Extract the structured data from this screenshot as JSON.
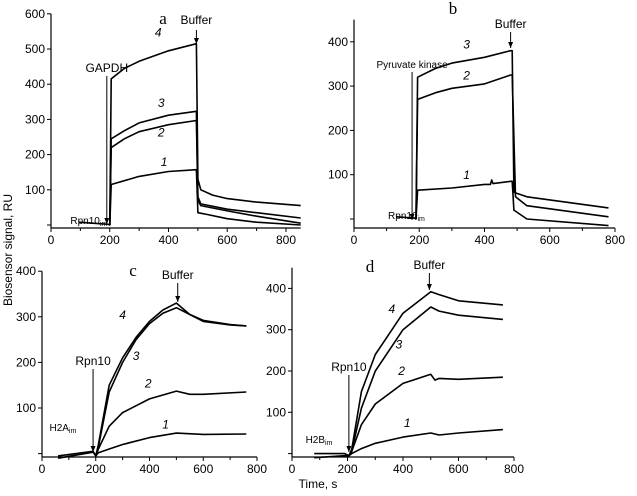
{
  "chart_data": {
    "ylabel": "Biosensor signal, RU",
    "xlabel": "Time, s",
    "panels": [
      {
        "id": "a",
        "title": "a",
        "type": "line",
        "xlim": [
          0,
          850
        ],
        "ylim": [
          0,
          600
        ],
        "xticks": [
          0,
          200,
          400,
          600,
          800
        ],
        "yticks": [
          100,
          200,
          300,
          400,
          500,
          600
        ],
        "annotations": [
          {
            "text": "GAPDH",
            "x": 190,
            "arrow": true
          },
          {
            "text": "Buffer",
            "x": 495,
            "arrow": true
          },
          {
            "text": "Rpn10",
            "sub": "im",
            "x": 100
          }
        ],
        "series": [
          {
            "name": "4",
            "label_at": [
              365,
              535
            ],
            "points": [
              [
                95,
                8
              ],
              [
                195,
                2
              ],
              [
                200,
                0
              ],
              [
                205,
                415
              ],
              [
                250,
                445
              ],
              [
                300,
                465
              ],
              [
                400,
                495
              ],
              [
                495,
                515
              ],
              [
                500,
                130
              ],
              [
                510,
                100
              ],
              [
                550,
                85
              ],
              [
                600,
                75
              ],
              [
                700,
                65
              ],
              [
                850,
                55
              ]
            ]
          },
          {
            "name": "3",
            "label_at": [
              375,
              335
            ],
            "points": [
              [
                200,
                0
              ],
              [
                205,
                245
              ],
              [
                250,
                268
              ],
              [
                300,
                290
              ],
              [
                400,
                312
              ],
              [
                495,
                323
              ],
              [
                500,
                80
              ],
              [
                510,
                60
              ],
              [
                600,
                45
              ],
              [
                700,
                35
              ],
              [
                850,
                20
              ]
            ]
          },
          {
            "name": "2",
            "label_at": [
              375,
              252
            ],
            "points": [
              [
                200,
                0
              ],
              [
                205,
                220
              ],
              [
                250,
                245
              ],
              [
                300,
                265
              ],
              [
                400,
                285
              ],
              [
                495,
                297
              ],
              [
                500,
                70
              ],
              [
                510,
                55
              ],
              [
                600,
                40
              ],
              [
                700,
                25
              ],
              [
                850,
                5
              ]
            ]
          },
          {
            "name": "1",
            "label_at": [
              385,
              168
            ],
            "points": [
              [
                200,
                0
              ],
              [
                205,
                115
              ],
              [
                300,
                138
              ],
              [
                400,
                152
              ],
              [
                495,
                157
              ],
              [
                500,
                35
              ],
              [
                530,
                30
              ],
              [
                600,
                18
              ],
              [
                700,
                8
              ],
              [
                850,
                0
              ]
            ]
          }
        ]
      },
      {
        "id": "b",
        "title": "b",
        "type": "line",
        "xlim": [
          0,
          800
        ],
        "ylim": [
          -20,
          450
        ],
        "xticks": [
          0,
          200,
          400,
          600,
          800
        ],
        "yticks": [
          100,
          200,
          300,
          400
        ],
        "annotations": [
          {
            "text": "Pyruvate kinase",
            "x": 178,
            "arrow": true
          },
          {
            "text": "Buffer",
            "x": 480,
            "arrow": true
          },
          {
            "text": "Rpn10",
            "sub": "im",
            "x": 135
          }
        ],
        "series": [
          {
            "name": "3",
            "label_at": [
              345,
              385
            ],
            "points": [
              [
                130,
                5
              ],
              [
                185,
                2
              ],
              [
                190,
                0
              ],
              [
                195,
                320
              ],
              [
                250,
                340
              ],
              [
                300,
                352
              ],
              [
                400,
                365
              ],
              [
                480,
                380
              ],
              [
                485,
                380
              ],
              [
                490,
                60
              ],
              [
                530,
                50
              ],
              [
                780,
                25
              ]
            ]
          },
          {
            "name": "2",
            "label_at": [
              345,
              315
            ],
            "points": [
              [
                190,
                0
              ],
              [
                195,
                270
              ],
              [
                250,
                285
              ],
              [
                300,
                295
              ],
              [
                400,
                305
              ],
              [
                480,
                325
              ],
              [
                485,
                325
              ],
              [
                495,
                50
              ],
              [
                530,
                30
              ],
              [
                780,
                5
              ]
            ]
          },
          {
            "name": "1",
            "label_at": [
              345,
              90
            ],
            "points": [
              [
                190,
                0
              ],
              [
                195,
                65
              ],
              [
                300,
                70
              ],
              [
                400,
                78
              ],
              [
                418,
                78
              ],
              [
                422,
                88
              ],
              [
                426,
                80
              ],
              [
                480,
                85
              ],
              [
                485,
                85
              ],
              [
                490,
                20
              ],
              [
                530,
                0
              ],
              [
                780,
                -15
              ]
            ]
          }
        ]
      },
      {
        "id": "c",
        "title": "c",
        "type": "line",
        "xlim": [
          0,
          800
        ],
        "ylim": [
          -10,
          400
        ],
        "xticks": [
          0,
          200,
          400,
          600,
          800
        ],
        "yticks": [
          100,
          200,
          300,
          400
        ],
        "annotations": [
          {
            "text": "Rpn10",
            "x": 190,
            "arrow": true
          },
          {
            "text": "Buffer",
            "x": 505,
            "arrow": true
          },
          {
            "text": "H2A",
            "sub": "im",
            "x": 65
          }
        ],
        "series": [
          {
            "name": "4",
            "label_at": [
              300,
              295
            ],
            "points": [
              [
                60,
                -5
              ],
              [
                190,
                5
              ],
              [
                200,
                -5
              ],
              [
                210,
                20
              ],
              [
                250,
                150
              ],
              [
                300,
                210
              ],
              [
                350,
                255
              ],
              [
                400,
                290
              ],
              [
                450,
                315
              ],
              [
                500,
                330
              ],
              [
                550,
                305
              ],
              [
                600,
                290
              ],
              [
                700,
                282
              ],
              [
                760,
                280
              ]
            ]
          },
          {
            "name": "3",
            "label_at": [
              350,
              205
            ],
            "points": [
              [
                60,
                -10
              ],
              [
                190,
                3
              ],
              [
                200,
                -5
              ],
              [
                210,
                15
              ],
              [
                250,
                135
              ],
              [
                300,
                200
              ],
              [
                350,
                250
              ],
              [
                400,
                285
              ],
              [
                450,
                308
              ],
              [
                500,
                320
              ],
              [
                550,
                305
              ],
              [
                600,
                292
              ],
              [
                700,
                283
              ],
              [
                760,
                280
              ]
            ]
          },
          {
            "name": "2",
            "label_at": [
              395,
              145
            ],
            "points": [
              [
                200,
                -5
              ],
              [
                210,
                10
              ],
              [
                250,
                60
              ],
              [
                300,
                90
              ],
              [
                400,
                120
              ],
              [
                500,
                137
              ],
              [
                550,
                130
              ],
              [
                600,
                130
              ],
              [
                760,
                135
              ]
            ]
          },
          {
            "name": "1",
            "label_at": [
              460,
              55
            ],
            "points": [
              [
                200,
                -5
              ],
              [
                210,
                2
              ],
              [
                250,
                10
              ],
              [
                300,
                20
              ],
              [
                400,
                35
              ],
              [
                500,
                45
              ],
              [
                600,
                42
              ],
              [
                760,
                43
              ]
            ]
          }
        ]
      },
      {
        "id": "d",
        "title": "d",
        "type": "line",
        "xlim": [
          0,
          800
        ],
        "ylim": [
          -10,
          450
        ],
        "xticks": [
          0,
          200,
          400,
          600,
          800
        ],
        "yticks": [
          100,
          200,
          300,
          400
        ],
        "annotations": [
          {
            "text": "Rpn10",
            "x": 205,
            "arrow": true
          },
          {
            "text": "Buffer",
            "x": 495,
            "arrow": true
          },
          {
            "text": "H2B",
            "sub": "im",
            "x": 85
          }
        ],
        "series": [
          {
            "name": "4",
            "label_at": [
              360,
              340
            ],
            "points": [
              [
                80,
                0
              ],
              [
                190,
                0
              ],
              [
                205,
                -5
              ],
              [
                215,
                10
              ],
              [
                250,
                150
              ],
              [
                300,
                240
              ],
              [
                400,
                340
              ],
              [
                500,
                392
              ],
              [
                530,
                385
              ],
              [
                600,
                370
              ],
              [
                760,
                360
              ]
            ]
          },
          {
            "name": "3",
            "label_at": [
              385,
              255
            ],
            "points": [
              [
                80,
                -10
              ],
              [
                190,
                -5
              ],
              [
                205,
                -5
              ],
              [
                215,
                5
              ],
              [
                250,
                110
              ],
              [
                300,
                200
              ],
              [
                400,
                300
              ],
              [
                500,
                355
              ],
              [
                530,
                345
              ],
              [
                600,
                335
              ],
              [
                760,
                325
              ]
            ]
          },
          {
            "name": "2",
            "label_at": [
              395,
              190
            ],
            "points": [
              [
                205,
                -5
              ],
              [
                215,
                5
              ],
              [
                250,
                70
              ],
              [
                300,
                120
              ],
              [
                400,
                170
              ],
              [
                500,
                192
              ],
              [
                515,
                178
              ],
              [
                530,
                182
              ],
              [
                600,
                180
              ],
              [
                760,
                185
              ]
            ]
          },
          {
            "name": "1",
            "label_at": [
              415,
              65
            ],
            "points": [
              [
                205,
                -5
              ],
              [
                215,
                0
              ],
              [
                250,
                12
              ],
              [
                300,
                25
              ],
              [
                400,
                40
              ],
              [
                500,
                50
              ],
              [
                530,
                45
              ],
              [
                600,
                50
              ],
              [
                760,
                58
              ]
            ]
          }
        ]
      }
    ]
  }
}
